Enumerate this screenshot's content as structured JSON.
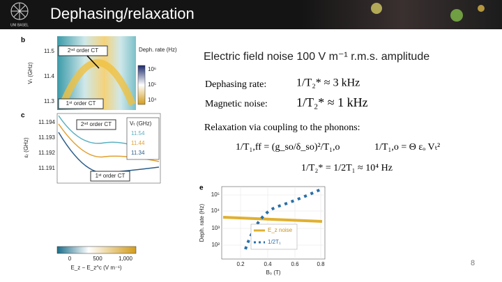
{
  "header": {
    "title": "Dephasing/relaxation",
    "logo_text": "UNI BASEL"
  },
  "figure_left": {
    "panel_b": {
      "label": "b",
      "ylabel": "Vₜ (GHz)",
      "yticks": [
        "11.5",
        "11.4",
        "11.3"
      ],
      "annotations": [
        "2ⁿᵈ order CT",
        "1ˢᵗ order CT"
      ],
      "colorbar_title": "Deph. rate (Hz)",
      "colorbar_ticks": [
        "10⁶",
        "10⁵",
        "10⁴"
      ]
    },
    "panel_c": {
      "label": "c",
      "ylabel": "εᵣ (GHz)",
      "yticks": [
        "11.194",
        "11.193",
        "11.192",
        "11.191"
      ],
      "annotations": [
        "2ⁿᵈ order CT",
        "1ˢᵗ order CT"
      ],
      "legend_title": "Vₜ (GHz)",
      "legend": [
        "11.54",
        "11.44",
        "11.34"
      ]
    },
    "colorbar": {
      "ticks": [
        "0",
        "500",
        "1,000"
      ],
      "xlabel": "E_z − E_z^c (V m⁻¹)"
    }
  },
  "body": {
    "noise_heading": "Electric field noise 100 V m⁻¹ r.m.s. amplitude",
    "dephasing_label": "Dephasing rate:",
    "dephasing_formula": "1/T₂* ≈ 3 kHz",
    "magnetic_label": "Magnetic noise:",
    "magnetic_formula": "1/T₂* ≈ 1 kHz",
    "relaxation_heading": "Relaxation via coupling to the phonons:",
    "formula_ff": "1/T₁,ff = (g_so/δ_so)²/T₁,o",
    "formula_o": "1/T₁,o = Θ εₒ Vₜ²",
    "formula_t2": "1/T₂* = 1/2T₁ ≈ 10⁴ Hz"
  },
  "panel_e": {
    "label": "e",
    "ylabel": "Deph. rate (Hz)",
    "yticks": [
      "10⁵",
      "10⁴",
      "10³",
      "10²"
    ],
    "xticks": [
      "0.2",
      "0.4",
      "0.6",
      "0.8"
    ],
    "xlabel": "B₀ (T)",
    "legend": [
      "E_z noise",
      "1/2T₁"
    ]
  },
  "page_number": "8"
}
